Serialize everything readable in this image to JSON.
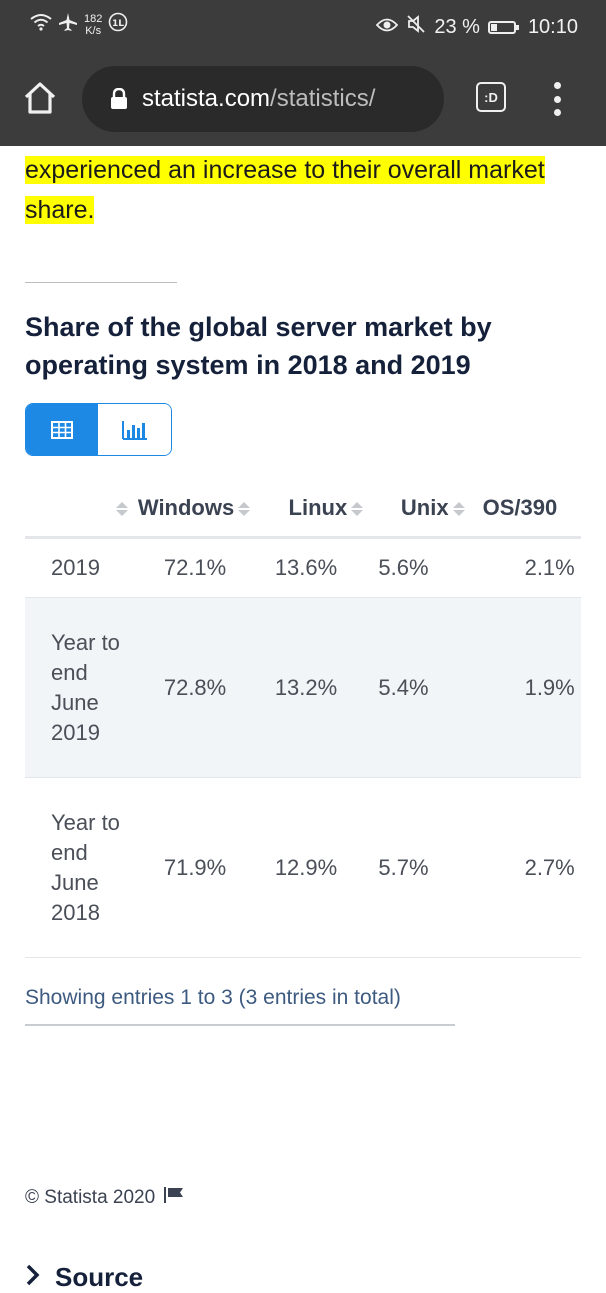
{
  "status_bar": {
    "net_speed_value": "182",
    "net_speed_unit": "K/s",
    "battery_percent": "23 %",
    "time": "10:10"
  },
  "browser": {
    "url_domain": "statista.com",
    "url_path": "/statistics/",
    "tab_label": ":D"
  },
  "content": {
    "highlight_text": "experienced an increase to their overall market share.",
    "chart_title": "Share of the global server market by operating system in 2018 and 2019",
    "table": {
      "headers": [
        "",
        "Windows",
        "Linux",
        "Unix",
        "OS/390"
      ],
      "rows": [
        {
          "year": "2019",
          "windows": "72.1%",
          "linux": "13.6%",
          "unix": "5.6%",
          "os390": "2.1%"
        },
        {
          "year": "Year to end June 2019",
          "windows": "72.8%",
          "linux": "13.2%",
          "unix": "5.4%",
          "os390": "1.9%"
        },
        {
          "year": "Year to end June 2018",
          "windows": "71.9%",
          "linux": "12.9%",
          "unix": "5.7%",
          "os390": "2.7%"
        }
      ]
    },
    "entries_info": "Showing entries 1 to 3 (3 entries in total)",
    "copyright": "© Statista 2020",
    "source_heading": "Source"
  },
  "colors": {
    "accent": "#1e88e5",
    "highlight": "#ffff00",
    "title": "#15213a",
    "status_bar_bg": "#3c3c3c"
  }
}
